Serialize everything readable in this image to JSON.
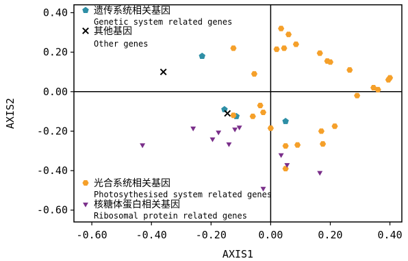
{
  "chart_data": {
    "type": "scatter",
    "title": "",
    "xlabel": "AXIS1",
    "ylabel": "AXIS2",
    "xlim": [
      -0.66,
      0.44
    ],
    "ylim": [
      -0.66,
      0.44
    ],
    "x_ticks": [
      -0.6,
      -0.4,
      -0.2,
      0.0,
      0.2,
      0.4
    ],
    "x_tick_labels": [
      "-0.60",
      "-0.40",
      "-0.20",
      "0.00",
      "0.20",
      "0.40"
    ],
    "y_ticks": [
      0.4,
      0.2,
      0.0,
      -0.2,
      -0.4,
      -0.6
    ],
    "y_tick_labels": [
      "0.40",
      "0.20",
      "0.00",
      "-0.20",
      "-0.40",
      "-0.60"
    ],
    "grid": false,
    "reference_lines": {
      "x": 0.0,
      "y": 0.0
    },
    "legend_placement": "top-left and bottom-left",
    "series": [
      {
        "name_cn": "遗传系统相关基因",
        "name": "Genetic system related genes",
        "marker": "pentagon",
        "color": "#2e8fa6",
        "points": [
          [
            -0.23,
            0.18
          ],
          [
            -0.155,
            -0.09
          ],
          [
            -0.115,
            -0.125
          ],
          [
            0.05,
            -0.15
          ]
        ]
      },
      {
        "name_cn": "其他基因",
        "name": "Other genes",
        "marker": "x",
        "color": "#000000",
        "points": [
          [
            -0.36,
            0.1
          ],
          [
            -0.145,
            -0.11
          ]
        ]
      },
      {
        "name_cn": "光合系统相关基因",
        "name": "Photosythesised system related genes",
        "marker": "hexagon",
        "color": "#f5a02a",
        "points": [
          [
            0.035,
            0.32
          ],
          [
            0.06,
            0.29
          ],
          [
            0.085,
            0.24
          ],
          [
            0.045,
            0.22
          ],
          [
            0.02,
            0.215
          ],
          [
            -0.125,
            0.22
          ],
          [
            -0.055,
            0.09
          ],
          [
            0.165,
            0.195
          ],
          [
            0.19,
            0.155
          ],
          [
            0.2,
            0.15
          ],
          [
            0.265,
            0.11
          ],
          [
            0.4,
            0.07
          ],
          [
            0.395,
            0.06
          ],
          [
            0.345,
            0.02
          ],
          [
            0.36,
            0.01
          ],
          [
            0.29,
            -0.02
          ],
          [
            -0.125,
            -0.12
          ],
          [
            -0.035,
            -0.07
          ],
          [
            -0.025,
            -0.105
          ],
          [
            -0.06,
            -0.125
          ],
          [
            0.0,
            -0.185
          ],
          [
            0.05,
            -0.275
          ],
          [
            0.09,
            -0.27
          ],
          [
            0.175,
            -0.265
          ],
          [
            0.215,
            -0.175
          ],
          [
            0.17,
            -0.2
          ],
          [
            0.05,
            -0.39
          ]
        ]
      },
      {
        "name_cn": "核糖体蛋白相关基因",
        "name": "Ribosomal protein related genes",
        "marker": "triangle-down",
        "color": "#7a2f8a",
        "points": [
          [
            -0.43,
            -0.27
          ],
          [
            -0.26,
            -0.185
          ],
          [
            -0.175,
            -0.205
          ],
          [
            -0.12,
            -0.19
          ],
          [
            -0.105,
            -0.18
          ],
          [
            -0.195,
            -0.24
          ],
          [
            -0.14,
            -0.265
          ],
          [
            0.035,
            -0.32
          ],
          [
            0.055,
            -0.37
          ],
          [
            0.165,
            -0.41
          ],
          [
            -0.025,
            -0.49
          ]
        ]
      }
    ]
  }
}
